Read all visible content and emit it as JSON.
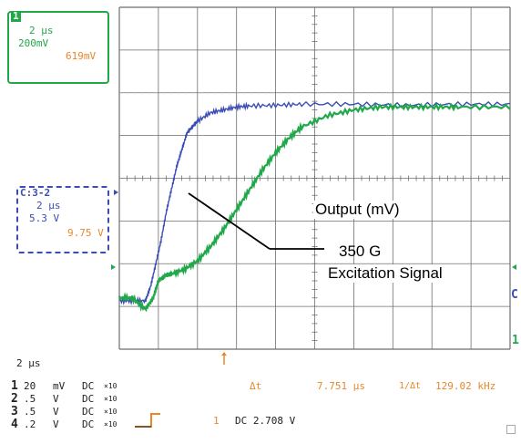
{
  "readout_box_1": {
    "channel": "1",
    "timebase": "2 μs",
    "scale": "200mV",
    "value": "619mV",
    "color": "#21a84a",
    "value_color": "#e8882a"
  },
  "readout_box_2": {
    "channel": "C:3-2",
    "timebase": "2 μs",
    "scale": "5.3 V",
    "value": "9.75 V",
    "color": "#3a4db4",
    "value_color": "#e8882a"
  },
  "annotations": {
    "output": "Output (mV)",
    "excitation_line1": "350 G",
    "excitation_line2": "Excitation Signal"
  },
  "status": {
    "timebase": "2 μs",
    "channels": [
      {
        "num": "1",
        "scale": "20",
        "unit": "mV",
        "coupling": "DC",
        "probe": "×10"
      },
      {
        "num": "2",
        "scale": ".5",
        "unit": "V",
        "coupling": "DC",
        "probe": "×10"
      },
      {
        "num": "3",
        "scale": ".5",
        "unit": "V",
        "coupling": "DC",
        "probe": "×10"
      },
      {
        "num": "4",
        "scale": ".2",
        "unit": "V",
        "coupling": "DC",
        "probe": "×10"
      }
    ],
    "delta_label": "Δt",
    "delta_value": "7.751 μs",
    "freq_label": "1/Δt",
    "freq_value": "129.02 kHz",
    "trigger_channel": "1",
    "trigger_info": "DC 2.708 V"
  },
  "markers": {
    "right_c": "C",
    "right_1": "1"
  },
  "colors": {
    "grid": "#6e6e6e",
    "trace_output": "#3a4db4",
    "trace_excitation": "#21a84a",
    "accent": "#e8882a"
  },
  "chart_data": {
    "type": "line",
    "series": [
      {
        "x": [
          -1.0,
          -0.5,
          0.0,
          0.2,
          0.4,
          0.6,
          0.8,
          1.0,
          1.2,
          1.4,
          1.6,
          1.8,
          2.0,
          2.5,
          3.0,
          3.5,
          4.0,
          5.0,
          6.0,
          8.0,
          10.0,
          12.0,
          14.0
        ],
        "values": [
          -0.15,
          -0.15,
          -0.15,
          0.1,
          0.5,
          0.9,
          1.4,
          1.8,
          2.2,
          2.5,
          2.8,
          2.9,
          3.0,
          3.15,
          3.2,
          3.25,
          3.27,
          3.28,
          3.3,
          3.3,
          3.28,
          3.3,
          3.3
        ]
      },
      {
        "x": [
          -1.0,
          -0.5,
          0.0,
          0.3,
          0.5,
          0.8,
          1.0,
          1.5,
          2.0,
          2.5,
          3.0,
          3.5,
          4.0,
          4.5,
          5.0,
          5.5,
          6.0,
          7.0,
          8.0,
          9.0,
          10.0,
          11.0,
          12.0,
          14.0
        ],
        "values": [
          -0.1,
          -0.1,
          -0.3,
          -0.1,
          0.2,
          0.3,
          0.32,
          0.4,
          0.55,
          0.8,
          1.1,
          1.45,
          1.8,
          2.15,
          2.45,
          2.7,
          2.9,
          3.1,
          3.2,
          3.25,
          3.25,
          3.25,
          3.25,
          3.25
        ]
      }
    ],
    "xlim": [
      -1,
      14
    ],
    "ylim": [
      -1,
      5
    ],
    "grid": true
  }
}
